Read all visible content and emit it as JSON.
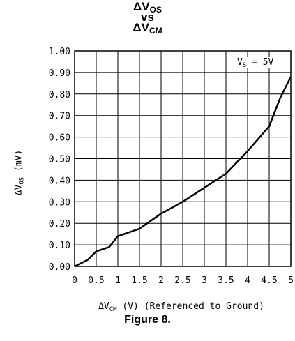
{
  "chart_data": {
    "type": "line",
    "title": {
      "line1_main": "ΔV",
      "line1_sub": "OS",
      "line2": "vs",
      "line3_main": "ΔV",
      "line3_sub": "CM"
    },
    "xlabel": {
      "main": "ΔV",
      "sub": "CM",
      "rest": " (V) (Referenced to Ground)"
    },
    "ylabel": {
      "main": "ΔV",
      "sub": "OS",
      "rest": " (mV)"
    },
    "annotation": {
      "main": "V",
      "sub": "S",
      "rest": " = 5V"
    },
    "caption": "Figure 8.",
    "xlim": [
      0,
      5
    ],
    "ylim": [
      0,
      1
    ],
    "x_ticks": [
      "0",
      "0.5",
      "1",
      "1.5",
      "2",
      "2.5",
      "3",
      "3.5",
      "4",
      "4.5",
      "5"
    ],
    "y_ticks": [
      "0.00",
      "0.10",
      "0.20",
      "0.30",
      "0.40",
      "0.50",
      "0.60",
      "0.70",
      "0.80",
      "0.90",
      "1.00"
    ],
    "grid": true,
    "series": [
      {
        "x": [
          0,
          0.3,
          0.5,
          0.8,
          1.0,
          1.5,
          2.0,
          2.5,
          3.0,
          3.5,
          4.0,
          4.5,
          4.75,
          5.0
        ],
        "y": [
          0.0,
          0.03,
          0.07,
          0.09,
          0.14,
          0.175,
          0.245,
          0.3,
          0.365,
          0.43,
          0.535,
          0.65,
          0.78,
          0.88
        ]
      }
    ]
  }
}
